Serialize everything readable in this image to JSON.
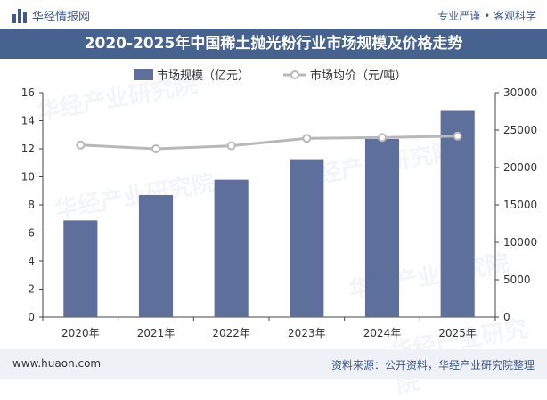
{
  "brand": {
    "name": "华经情报网",
    "slogan": "专业严谨 • 客观科学"
  },
  "title": "2020-2025年中国稀土抛光粉行业市场规模及价格走势",
  "footer": {
    "site": "www.huaon.com",
    "source": "资料来源：公开资料，华经产业研究院整理"
  },
  "watermark": "华经产业研究院",
  "colors": {
    "bar": "#5f6f9c",
    "line": "#b8b8b8",
    "accent": "#46628f"
  },
  "chart_data": {
    "type": "bar+line",
    "categories": [
      "2020年",
      "2021年",
      "2022年",
      "2023年",
      "2024年",
      "2025年"
    ],
    "series": [
      {
        "name": "市场规模（亿元）",
        "type": "bar",
        "axis": "left",
        "values": [
          6.9,
          8.7,
          9.8,
          11.2,
          12.7,
          14.7
        ]
      },
      {
        "name": "市场均价（元/吨）",
        "type": "line",
        "axis": "right",
        "values": [
          23000,
          22500,
          22900,
          23900,
          24000,
          24200
        ]
      }
    ],
    "y_left": {
      "min": 0,
      "max": 16,
      "ticks": [
        "0",
        "2",
        "4",
        "6",
        "8",
        "10",
        "12",
        "14",
        "16"
      ]
    },
    "y_right": {
      "min": 0,
      "max": 30000,
      "ticks": [
        "0",
        "5000",
        "10000",
        "15000",
        "20000",
        "25000",
        "30000"
      ]
    },
    "legend_position": "top-center",
    "grid": false
  }
}
